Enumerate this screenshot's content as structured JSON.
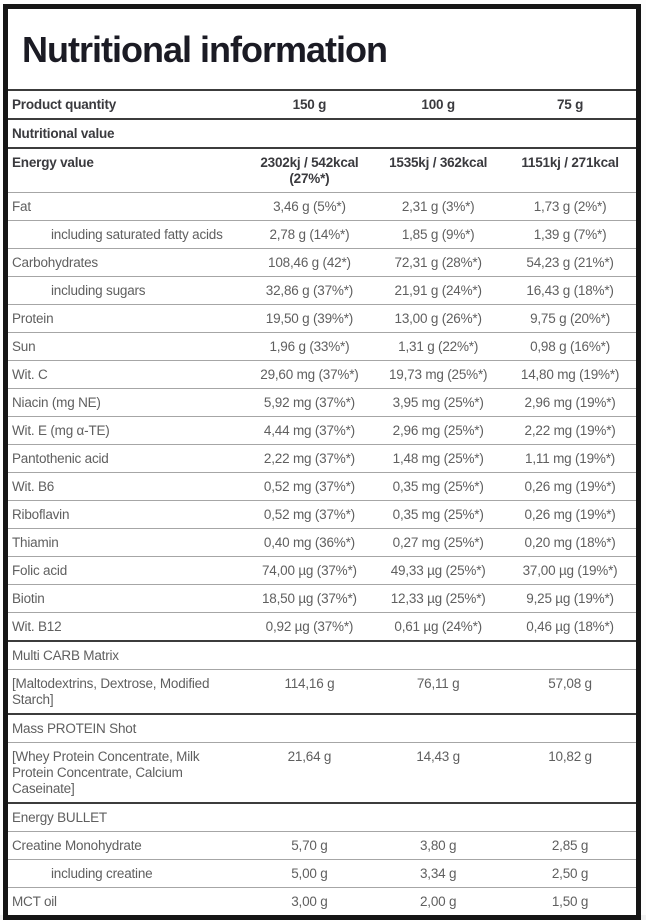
{
  "title": "Nutritional information",
  "colors": {
    "outer_border": "#151515",
    "heavy_divider": "#3c3c3c",
    "light_divider": "#a6a6a6",
    "title_text": "#1b1b24",
    "bold_row_text": "#3a3a3e",
    "body_text": "#5f5f5f",
    "background": "#ffffff"
  },
  "table": {
    "rows": [
      {
        "label": "Product quantity",
        "style": "bold",
        "thick_top": false,
        "values": [
          "150 g",
          "100 g",
          "75 g"
        ]
      },
      {
        "label": "Nutritional value",
        "style": "bold",
        "thick_top": true,
        "values": []
      },
      {
        "label": "Energy value",
        "style": "bold",
        "thick_top": true,
        "values": [
          "2302kj / 542kcal (27%*)",
          "1535kj / 362kcal",
          "1151kj / 271kcal"
        ]
      },
      {
        "label": "Fat",
        "style": "normal",
        "thick_top": false,
        "values": [
          "3,46 g (5%*)",
          "2,31 g (3%*)",
          "1,73 g (2%*)"
        ]
      },
      {
        "label": "including saturated fatty acids",
        "style": "indent",
        "thick_top": false,
        "values": [
          "2,78 g (14%*)",
          "1,85 g (9%*)",
          "1,39 g (7%*)"
        ]
      },
      {
        "label": "Carbohydrates",
        "style": "normal",
        "thick_top": false,
        "values": [
          "108,46 g (42*)",
          "72,31 g (28%*)",
          "54,23 g (21%*)"
        ]
      },
      {
        "label": "including sugars",
        "style": "indent",
        "thick_top": false,
        "values": [
          "32,86 g (37%*)",
          "21,91 g (24%*)",
          "16,43 g (18%*)"
        ]
      },
      {
        "label": "Protein",
        "style": "normal",
        "thick_top": false,
        "values": [
          "19,50 g (39%*)",
          "13,00 g (26%*)",
          "9,75 g (20%*)"
        ]
      },
      {
        "label": "Sun",
        "style": "normal",
        "thick_top": false,
        "values": [
          "1,96 g (33%*)",
          "1,31 g (22%*)",
          "0,98 g (16%*)"
        ]
      },
      {
        "label": "Wit. C",
        "style": "normal",
        "thick_top": false,
        "values": [
          "29,60 mg (37%*)",
          "19,73 mg (25%*)",
          "14,80 mg (19%*)"
        ]
      },
      {
        "label": "Niacin (mg NE)",
        "style": "normal",
        "thick_top": false,
        "values": [
          "5,92 mg (37%*)",
          "3,95 mg (25%*)",
          "2,96 mg (19%*)"
        ]
      },
      {
        "label": "Wit. E (mg α-TE)",
        "style": "normal",
        "thick_top": false,
        "values": [
          "4,44 mg (37%*)",
          "2,96 mg (25%*)",
          "2,22 mg (19%*)"
        ]
      },
      {
        "label": "Pantothenic acid",
        "style": "normal",
        "thick_top": false,
        "values": [
          "2,22 mg (37%*)",
          "1,48 mg (25%*)",
          "1,11 mg (19%*)"
        ]
      },
      {
        "label": "Wit. B6",
        "style": "normal",
        "thick_top": false,
        "values": [
          "0,52 mg (37%*)",
          "0,35 mg (25%*)",
          "0,26 mg (19%*)"
        ]
      },
      {
        "label": "Riboflavin",
        "style": "normal",
        "thick_top": false,
        "values": [
          "0,52 mg (37%*)",
          "0,35 mg (25%*)",
          "0,26 mg (19%*)"
        ]
      },
      {
        "label": "Thiamin",
        "style": "normal",
        "thick_top": false,
        "values": [
          "0,40 mg (36%*)",
          "0,27 mg (25%*)",
          "0,20 mg (18%*)"
        ]
      },
      {
        "label": "Folic acid",
        "style": "normal",
        "thick_top": false,
        "values": [
          "74,00 µg (37%*)",
          "49,33 µg (25%*)",
          "37,00 µg (19%*)"
        ]
      },
      {
        "label": "Biotin",
        "style": "normal",
        "thick_top": false,
        "values": [
          "18,50 µg (37%*)",
          "12,33 µg (25%*)",
          "9,25 µg (19%*)"
        ]
      },
      {
        "label": "Wit. B12",
        "style": "normal",
        "thick_top": false,
        "values": [
          "0,92 µg (37%*)",
          "0,61 µg (24%*)",
          "0,46 µg (18%*)"
        ]
      },
      {
        "label": "Multi CARB Matrix",
        "style": "section",
        "thick_top": true,
        "values": []
      },
      {
        "label": "[Maltodextrins, Dextrose, Modified Starch]",
        "style": "normal",
        "thick_top": false,
        "values": [
          "114,16 g",
          "76,11 g",
          "57,08 g"
        ]
      },
      {
        "label": "Mass PROTEIN Shot",
        "style": "section",
        "thick_top": true,
        "values": []
      },
      {
        "label": "[Whey Protein Concentrate, Milk Protein Concentrate, Calcium Caseinate]",
        "style": "normal",
        "thick_top": false,
        "values": [
          "21,64 g",
          "14,43 g",
          "10,82 g"
        ]
      },
      {
        "label": "Energy BULLET",
        "style": "section",
        "thick_top": true,
        "values": []
      },
      {
        "label": "Creatine Monohydrate",
        "style": "normal",
        "thick_top": false,
        "values": [
          "5,70 g",
          "3,80 g",
          "2,85 g"
        ]
      },
      {
        "label": "including creatine",
        "style": "indent",
        "thick_top": false,
        "values": [
          "5,00 g",
          "3,34 g",
          "2,50 g"
        ]
      },
      {
        "label": "MCT oil",
        "style": "normal",
        "thick_top": false,
        "values": [
          "3,00 g",
          "2,00 g",
          "1,50 g"
        ]
      }
    ]
  }
}
